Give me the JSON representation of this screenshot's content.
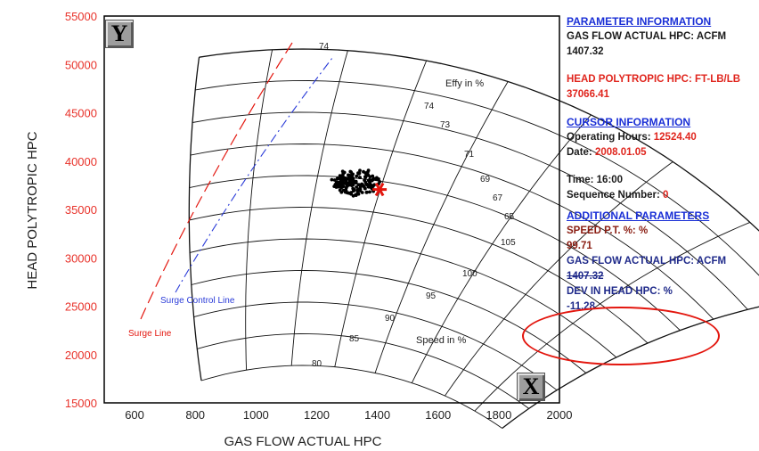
{
  "chart_data": {
    "type": "scatter",
    "xlabel": "GAS FLOW ACTUAL HPC",
    "ylabel": "HEAD POLYTROPIC HPC",
    "xlim": [
      500,
      2000
    ],
    "ylim": [
      15000,
      55000
    ],
    "x_ticks": [
      "600",
      "800",
      "1000",
      "1200",
      "1400",
      "1600",
      "1800",
      "2000"
    ],
    "y_ticks": [
      "15000",
      "20000",
      "25000",
      "30000",
      "35000",
      "40000",
      "45000",
      "50000",
      "55000"
    ],
    "annotations": {
      "efficiency_label": "Effy in %",
      "speed_label": "Speed in %",
      "surge_line_label": "Surge Line",
      "surge_control_label": "Surge Control Line"
    },
    "efficiency_labels": [
      "74",
      "74",
      "73",
      "71",
      "69",
      "67",
      "65"
    ],
    "speed_labels": [
      "105",
      "100",
      "95",
      "90",
      "85",
      "80"
    ],
    "cursor_point": {
      "x": 1407.32,
      "y": 37066.41
    },
    "cluster_center": {
      "x": 1330,
      "y": 37800
    },
    "colors": {
      "surge_line": "#e3160e",
      "surge_control_line": "#2a3bd8",
      "grid": "#111111",
      "points": "#000000",
      "cursor": "#e3160e"
    }
  },
  "controls": {
    "y_button": "Y",
    "x_button": "X"
  },
  "info": {
    "param_header": "PARAMETER INFORMATION",
    "gas_flow_label": "GAS FLOW ACTUAL HPC: ACFM",
    "gas_flow_value": "1407.32",
    "head_label": "HEAD POLYTROPIC HPC: FT-LB/LB",
    "head_value": "37066.41",
    "cursor_header": "CURSOR INFORMATION",
    "op_hours_label": "Operating Hours: ",
    "op_hours_value": "12524.40",
    "date_label": "Date: ",
    "date_value": "2008.01.05",
    "time_label": "Time: 16:00",
    "seq_label": "Sequence Number: ",
    "seq_value": "0",
    "additional_header": "ADDITIONAL PARAMETERS",
    "speed_label": "SPEED P.T. %: %",
    "speed_value": "99.71",
    "gas_flow2_label": "GAS FLOW ACTUAL HPC: ACFM",
    "gas_flow2_value": "1407.32",
    "dev_label": "DEV IN HEAD HPC: %",
    "dev_value": "-11.28"
  }
}
